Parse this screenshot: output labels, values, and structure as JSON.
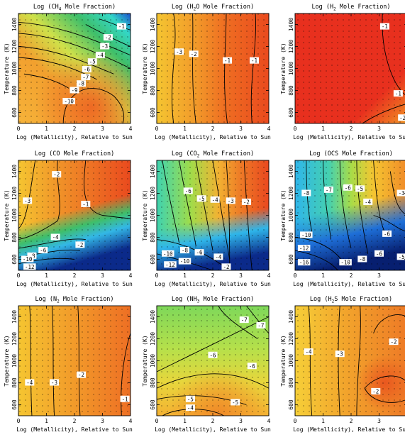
{
  "chart_data": [
    {
      "type": "heatmap",
      "title": "Log (CH4 Mole Fraction)",
      "title_main": "Log (CH",
      "title_sub": "4",
      "title_rest": " Mole Fraction)",
      "xlabel": "Log (Metallicity), Relative to Sun",
      "ylabel": "Temperature (K)",
      "xlim": [
        0,
        4
      ],
      "ylim": [
        500,
        1500
      ],
      "xticks": [
        0,
        1,
        2,
        3,
        4
      ],
      "yticks": [
        600,
        800,
        1000,
        1200,
        1400
      ],
      "colors": [
        "#33d7c6",
        "#3fbf6a",
        "#cfe14a",
        "#f6b33a",
        "#f47a28"
      ],
      "contours": [
        -1,
        -2
      ],
      "labels": [
        "-1",
        "-2",
        "-3",
        "-4",
        "-5",
        "-6",
        "-7",
        "-8",
        "-9",
        "-10"
      ]
    },
    {
      "type": "heatmap",
      "title": "Log (H2O Mole Fraction)",
      "title_main": "Log (H",
      "title_sub": "2",
      "title_rest": "O Mole Fraction)",
      "xlabel": "Log (Metallicity), Relative to Sun",
      "ylabel": "Temperature (K)",
      "xlim": [
        0,
        4
      ],
      "ylim": [
        500,
        1500
      ],
      "xticks": [
        0,
        1,
        2,
        3,
        4
      ],
      "yticks": [
        600,
        800,
        1000,
        1200,
        1400
      ],
      "colors": [
        "#f5c531",
        "#f29a2a",
        "#ef6f22",
        "#ea4a1e"
      ],
      "labels": [
        "-3",
        "-2",
        "-1",
        "-1"
      ]
    },
    {
      "type": "heatmap",
      "title": "Log (H2 Mole Fraction)",
      "title_main": "Log (H",
      "title_sub": "2",
      "title_rest": " Mole Fraction)",
      "xlabel": "Log (Metallicity), Relative to Sun",
      "ylabel": "Temperature (K)",
      "xlim": [
        0,
        4
      ],
      "ylim": [
        500,
        1500
      ],
      "xticks": [
        0,
        1,
        2,
        3,
        4
      ],
      "yticks": [
        600,
        800,
        1000,
        1200,
        1400
      ],
      "colors": [
        "#e8301e",
        "#ee6a22",
        "#f29a2a"
      ],
      "labels": [
        "-1",
        "-1",
        "-2"
      ]
    },
    {
      "type": "heatmap",
      "title": "Log (CO Mole Fraction)",
      "title_main": "Log (CO Mole Fraction)",
      "title_sub": "",
      "title_rest": "",
      "xlabel": "Log (Metallicity), Relative to Sun",
      "ylabel": "Temperature (K)",
      "xlim": [
        0,
        4
      ],
      "ylim": [
        500,
        1500
      ],
      "xticks": [
        0,
        1,
        2,
        3,
        4
      ],
      "yticks": [
        600,
        800,
        1000,
        1200,
        1400
      ],
      "colors": [
        "#f5c531",
        "#f08e28",
        "#ea5a20",
        "#3fbf6a",
        "#33b7e6",
        "#0b2a8a"
      ],
      "labels": [
        "-2",
        "-3",
        "-1",
        "-2",
        "-4",
        "-6",
        "-8",
        "-10",
        "-12"
      ]
    },
    {
      "type": "heatmap",
      "title": "Log (CO2 Mole Fraction)",
      "title_main": "Log (CO",
      "title_sub": "2",
      "title_rest": " Mole Fraction)",
      "xlabel": "Log (Metallicity), Relative to Sun",
      "ylabel": "Temperature (K)",
      "xlim": [
        0,
        4
      ],
      "ylim": [
        500,
        1500
      ],
      "xticks": [
        0,
        1,
        2,
        3,
        4
      ],
      "yticks": [
        600,
        800,
        1000,
        1200,
        1400
      ],
      "colors": [
        "#3fd3b0",
        "#9fdc4a",
        "#f2b232",
        "#ee7a26",
        "#e9481f",
        "#0b2a8a"
      ],
      "labels": [
        "-6",
        "-5",
        "-4",
        "-3",
        "-2",
        "-10",
        "-8",
        "-6",
        "-4",
        "-12",
        "-10",
        "-2"
      ]
    },
    {
      "type": "heatmap",
      "title": "Log (OCS Mole Fraction)",
      "title_main": "Log (OCS Mole Fraction)",
      "title_sub": "",
      "title_rest": "",
      "xlabel": "Log (Metallicity), Relative to Sun",
      "ylabel": "Temperature (K)",
      "xlim": [
        0,
        4
      ],
      "ylim": [
        500,
        1500
      ],
      "xticks": [
        0,
        1,
        2,
        3,
        4
      ],
      "yticks": [
        600,
        800,
        1000,
        1200,
        1400
      ],
      "colors": [
        "#2fb6ea",
        "#45d0b0",
        "#a8dc48",
        "#f5c531",
        "#f08a28",
        "#0b2a8a"
      ],
      "labels": [
        "-8",
        "-7",
        "-6",
        "-5",
        "-4",
        "-3",
        "-10",
        "-12",
        "-16",
        "-6",
        "-8",
        "-10",
        "-6",
        "-5"
      ]
    },
    {
      "type": "heatmap",
      "title": "Log (N2 Mole Fraction)",
      "title_main": "Log (N",
      "title_sub": "2",
      "title_rest": " Mole Fraction)",
      "xlabel": "Log (Metallicity), Relative to Sun",
      "ylabel": "Temperature (K)",
      "xlim": [
        0,
        4
      ],
      "ylim": [
        500,
        1500
      ],
      "xticks": [
        0,
        1,
        2,
        3,
        4
      ],
      "yticks": [
        600,
        800,
        1000,
        1200,
        1400
      ],
      "colors": [
        "#f5c531",
        "#f29a2a",
        "#ee6f24"
      ],
      "labels": [
        "-4",
        "-3",
        "-2",
        "-1"
      ]
    },
    {
      "type": "heatmap",
      "title": "Log (NH3 Mole Fraction)",
      "title_main": "Log (NH",
      "title_sub": "3",
      "title_rest": " Mole Fraction)",
      "xlabel": "Log (Metallicity), Relative to Sun",
      "ylabel": "Temperature (K)",
      "xlim": [
        0,
        4
      ],
      "ylim": [
        500,
        1500
      ],
      "xticks": [
        0,
        1,
        2,
        3,
        4
      ],
      "yticks": [
        600,
        800,
        1000,
        1200,
        1400
      ],
      "colors": [
        "#7ed85a",
        "#b7e04a",
        "#e8d63c",
        "#f4b232",
        "#f08a28"
      ],
      "labels": [
        "-7",
        "-7",
        "-6",
        "-6",
        "-5",
        "-5",
        "-4"
      ]
    },
    {
      "type": "heatmap",
      "title": "Log (H2S Mole Fraction)",
      "title_main": "Log (H",
      "title_sub": "2",
      "title_rest": "S Mole Fraction)",
      "xlabel": "Log (Metallicity), Relative to Sun",
      "ylabel": "Temperature (K)",
      "xlim": [
        0,
        4
      ],
      "ylim": [
        500,
        1500
      ],
      "xticks": [
        0,
        1,
        2,
        3,
        4
      ],
      "yticks": [
        600,
        800,
        1000,
        1200,
        1400
      ],
      "colors": [
        "#f6cf38",
        "#f2a42c",
        "#ee7a26",
        "#e9571f"
      ],
      "labels": [
        "-4",
        "-3",
        "-2",
        "-2"
      ]
    }
  ]
}
